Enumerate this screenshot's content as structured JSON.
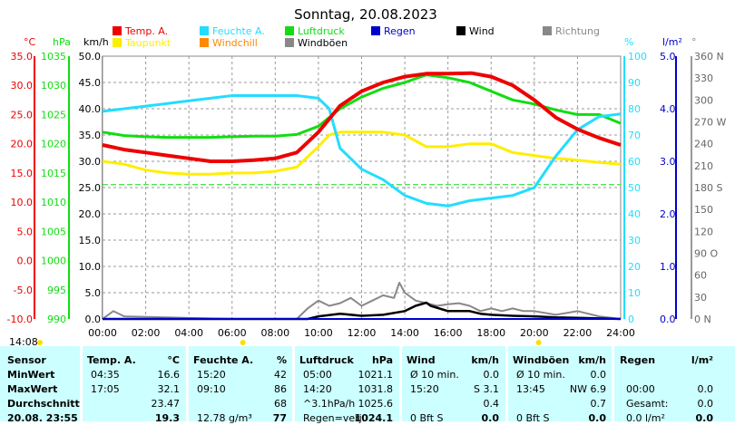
{
  "title": "Sonntag, 20.08.2023",
  "timestamp": "14:08",
  "legend": [
    {
      "label": "Temp. A.",
      "color": "#ee0000"
    },
    {
      "label": "Feuchte A.",
      "color": "#22ddff"
    },
    {
      "label": "Luftdruck",
      "color": "#11dd11"
    },
    {
      "label": "Regen",
      "color": "#0000cc"
    },
    {
      "label": "Wind",
      "color": "#000000"
    },
    {
      "label": "Richtung",
      "color": "#888888"
    },
    {
      "label": "Taupunkt",
      "color": "#ffee00"
    },
    {
      "label": "Windchill",
      "color": "#ff8800"
    },
    {
      "label": "Windböen",
      "color": "#888888"
    }
  ],
  "colors": {
    "temp": "#ee0000",
    "humidity": "#22ddff",
    "pressure": "#11dd11",
    "dewpoint": "#ffee00",
    "wind": "#000000",
    "gust": "#888888",
    "rain": "#0000cc",
    "grid": "#aaaaaa"
  },
  "chart_data": {
    "type": "line",
    "x_unit": "time",
    "xlim": [
      "00:00",
      "24:00"
    ],
    "x_ticks": [
      "00:00",
      "02:00",
      "04:00",
      "06:00",
      "08:00",
      "10:00",
      "12:00",
      "14:00",
      "16:00",
      "18:00",
      "20:00",
      "22:00",
      "24:00"
    ],
    "axes": [
      {
        "unit": "°C",
        "color": "#ee0000",
        "ticks": [
          "35.0",
          "30.0",
          "25.0",
          "20.0",
          "15.0",
          "10.0",
          "5.0",
          "0.0",
          "-5.0",
          "-10.0"
        ],
        "ylim": [
          -10,
          35
        ]
      },
      {
        "unit": "hPa",
        "color": "#11dd11",
        "ticks": [
          "1035",
          "1030",
          "1025",
          "1020",
          "1015",
          "1010",
          "1005",
          "1000",
          "995",
          "990"
        ],
        "ylim": [
          990,
          1035
        ]
      },
      {
        "unit": "km/h",
        "color": "#000000",
        "ticks": [
          "50.0",
          "45.0",
          "40.0",
          "35.0",
          "30.0",
          "25.0",
          "20.0",
          "15.0",
          "10.0",
          "5.0",
          "0.0"
        ],
        "ylim": [
          0,
          50
        ]
      },
      {
        "unit": "%",
        "color": "#22ddff",
        "ticks": [
          "100",
          "90",
          "80",
          "70",
          "60",
          "50",
          "40",
          "30",
          "20",
          "10",
          "0"
        ],
        "ylim": [
          0,
          100
        ]
      },
      {
        "unit": "l/m²",
        "color": "#0000cc",
        "ticks": [
          "5.0",
          "4.0",
          "3.0",
          "2.0",
          "1.0",
          "0.0"
        ],
        "ylim": [
          0,
          5
        ]
      },
      {
        "unit": "°",
        "color": "#888888",
        "ticks": [
          "360 N",
          "330",
          "300",
          "270 W",
          "240",
          "210",
          "180 S",
          "150",
          "120",
          "90 O",
          "60",
          "30",
          "0 N"
        ],
        "ylim": [
          0,
          360
        ]
      }
    ],
    "series": [
      {
        "name": "Temp. A.",
        "axis": "°C",
        "x": [
          0,
          1,
          2,
          3,
          4,
          5,
          6,
          7,
          8,
          9,
          10,
          11,
          12,
          13,
          14,
          15,
          16,
          17,
          17.1,
          18,
          19,
          20,
          21,
          22,
          23,
          24
        ],
        "y": [
          19.8,
          19.0,
          18.5,
          18.0,
          17.5,
          17.0,
          17.0,
          17.2,
          17.5,
          18.5,
          22.0,
          26.5,
          29.0,
          30.5,
          31.5,
          32.0,
          32.0,
          32.1,
          32.1,
          31.5,
          30.0,
          27.5,
          24.5,
          22.5,
          21.0,
          19.8
        ]
      },
      {
        "name": "Taupunkt",
        "axis": "°C",
        "x": [
          0,
          1,
          2,
          3,
          4,
          5,
          6,
          7,
          8,
          9,
          10,
          10.5,
          11,
          12,
          13,
          14,
          15,
          16,
          17,
          18,
          19,
          20,
          21,
          22,
          23,
          24
        ],
        "y": [
          17.0,
          16.5,
          15.5,
          15.0,
          14.8,
          14.8,
          15.0,
          15.0,
          15.3,
          16.0,
          19.5,
          21.5,
          22.0,
          22.0,
          22.0,
          21.5,
          19.5,
          19.5,
          20.0,
          20.0,
          18.5,
          18.0,
          17.5,
          17.2,
          16.8,
          16.5
        ]
      },
      {
        "name": "Feuchte A.",
        "axis": "%",
        "x": [
          0,
          1,
          2,
          3,
          4,
          5,
          6,
          7,
          8,
          9,
          10,
          10.5,
          11,
          12,
          13,
          14,
          15,
          16,
          17,
          18,
          19,
          20,
          21,
          22,
          23,
          24
        ],
        "y": [
          79,
          80,
          81,
          82,
          83,
          84,
          85,
          85,
          85,
          85,
          84,
          80,
          65,
          57,
          53,
          47,
          44,
          43,
          45,
          46,
          47,
          50,
          62,
          72,
          77,
          78
        ]
      },
      {
        "name": "Luftdruck",
        "axis": "hPa",
        "x": [
          0,
          1,
          2,
          3,
          4,
          5,
          6,
          7,
          8,
          9,
          10,
          11,
          12,
          13,
          14,
          15,
          16,
          17,
          18,
          19,
          20,
          21,
          22,
          23,
          24
        ],
        "y": [
          1022.0,
          1021.4,
          1021.2,
          1021.1,
          1021.1,
          1021.1,
          1021.2,
          1021.3,
          1021.3,
          1021.6,
          1023.0,
          1026.0,
          1028.0,
          1029.5,
          1030.5,
          1031.8,
          1031.3,
          1030.5,
          1029.0,
          1027.5,
          1026.8,
          1025.8,
          1025.0,
          1025.0,
          1023.5
        ]
      },
      {
        "name": "Wind",
        "axis": "km/h",
        "x": [
          0,
          9.5,
          10,
          11,
          12,
          13,
          14,
          14.5,
          15,
          15.2,
          16,
          17,
          17.5,
          18,
          19,
          20,
          21,
          22,
          24
        ],
        "y": [
          0,
          0,
          0.5,
          1.0,
          0.6,
          0.8,
          1.5,
          2.5,
          3.1,
          2.5,
          1.5,
          1.5,
          1.0,
          0.8,
          0.6,
          0.5,
          0.3,
          0.2,
          0
        ]
      },
      {
        "name": "Windböen",
        "axis": "km/h",
        "x": [
          0,
          0.5,
          1,
          6,
          7.5,
          9,
          9.5,
          10,
          10.5,
          11,
          11.5,
          12,
          12.5,
          13,
          13.5,
          13.75,
          14,
          14.5,
          15,
          15.5,
          16,
          16.5,
          17,
          17.5,
          18,
          18.5,
          19,
          19.5,
          20,
          21,
          22,
          23,
          24
        ],
        "y": [
          0,
          1.5,
          0.5,
          0,
          0,
          0,
          2.0,
          3.5,
          2.5,
          3.0,
          4.0,
          2.5,
          3.5,
          4.5,
          4.0,
          6.9,
          5.0,
          3.5,
          3.0,
          2.5,
          2.8,
          3.0,
          2.5,
          1.5,
          2.0,
          1.5,
          2.0,
          1.5,
          1.5,
          0.8,
          1.5,
          0.5,
          0
        ]
      },
      {
        "name": "Regen",
        "axis": "l/m²",
        "x": [
          0,
          24
        ],
        "y": [
          0,
          0
        ]
      }
    ]
  },
  "table": {
    "headers": [
      "Sensor",
      "Temp. A.",
      "°C",
      "Feuchte A.",
      "%",
      "Luftdruck",
      "hPa",
      "Wind",
      "km/h",
      "Windböen",
      "km/h",
      "Regen",
      "l/m²"
    ],
    "rows": [
      {
        "label": "MinWert",
        "temp_time": "04:35",
        "temp_val": "16.6",
        "hum_time": "15:20",
        "hum_val": "42",
        "press_time": "05:00",
        "press_val": "1021.1",
        "wind_desc": "Ø 10 min.",
        "wind_val": "0.0",
        "gust_desc": "Ø 10 min.",
        "gust_val": "0.0",
        "rain_desc": "",
        "rain_val": ""
      },
      {
        "label": "MaxWert",
        "temp_time": "17:05",
        "temp_val": "32.1",
        "hum_time": "09:10",
        "hum_val": "86",
        "press_time": "14:20",
        "press_val": "1031.8",
        "wind_desc": "15:20",
        "wind_dir": "S 3.1",
        "wind_val": "",
        "gust_desc": "13:45",
        "gust_dir": "NW 6.9",
        "gust_val": "",
        "rain_desc": "00:00",
        "rain_val": "0.0"
      },
      {
        "label": "Durchschnitt",
        "temp_time": "",
        "temp_val": "23.47",
        "hum_time": "",
        "hum_val": "68",
        "press_time": "^3.1hPa/h",
        "press_val": "1025.6",
        "wind_desc": "",
        "wind_val": "0.4",
        "gust_desc": "",
        "gust_val": "0.7",
        "rain_desc": "Gesamt:",
        "rain_val": "0.0"
      },
      {
        "label": "20.08. 23:55",
        "temp_time": "",
        "temp_val": "19.3",
        "hum_time": "12.78 g/m³",
        "hum_val": "77",
        "press_time": "Regen=verj.",
        "press_val": "1024.1",
        "wind_desc": "0 Bft S",
        "wind_val": "0.0",
        "gust_desc": "0 Bft S",
        "gust_val": "0.0",
        "rain_desc": "0.0 l/m²",
        "rain_val": "0.0"
      }
    ]
  }
}
